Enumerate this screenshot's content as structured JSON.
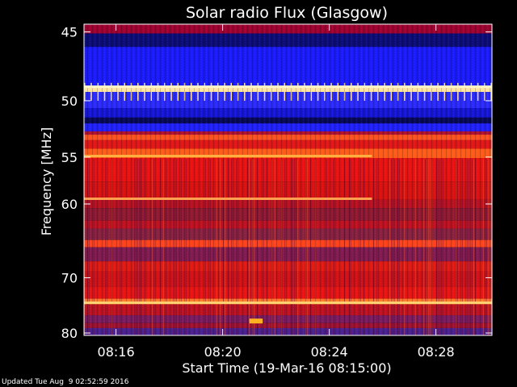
{
  "chart_data": {
    "type": "heatmap",
    "title": "Solar radio Flux (Glasgow)",
    "xlabel": "Start Time (19-Mar-16 08:15:00)",
    "ylabel": "Frequency [MHz]",
    "x_ticks": [
      "08:16",
      "08:20",
      "08:24",
      "08:28"
    ],
    "x_tick_minutes": [
      1,
      5,
      9,
      13
    ],
    "xlim_minutes": [
      -0.2,
      15.1
    ],
    "y_ticks": [
      45,
      50,
      55,
      60,
      70,
      80
    ],
    "ylim_mhz": [
      44.5,
      80.5
    ],
    "y_scale": "reciprocal",
    "colormap": [
      "#08083c",
      "#1818c8",
      "#2030ff",
      "#6a10a0",
      "#a00020",
      "#e01010",
      "#ff3a10",
      "#ff8a30",
      "#ffc060",
      "#ffe890"
    ],
    "bands": [
      {
        "from": 44.5,
        "to": 45.1,
        "color": "#a00030"
      },
      {
        "from": 45.1,
        "to": 46.0,
        "color": "#0c0c78"
      },
      {
        "from": 46.0,
        "to": 48.8,
        "color": "#1a1aff"
      },
      {
        "from": 48.8,
        "to": 49.3,
        "color": "#ffe4a0"
      },
      {
        "from": 49.3,
        "to": 50.6,
        "color": "#2a2aff"
      },
      {
        "from": 50.6,
        "to": 51.4,
        "color": "#1515d8"
      },
      {
        "from": 51.4,
        "to": 51.9,
        "color": "#080858"
      },
      {
        "from": 51.9,
        "to": 52.6,
        "color": "#2020ff"
      },
      {
        "from": 52.6,
        "to": 52.9,
        "color": "#b01030"
      },
      {
        "from": 52.9,
        "to": 53.4,
        "color": "#ff5020"
      },
      {
        "from": 53.4,
        "to": 54.2,
        "color": "#e01515"
      },
      {
        "from": 54.2,
        "to": 55.1,
        "color": "#ff5a18"
      },
      {
        "from": 55.1,
        "to": 57.5,
        "color": "#e81010"
      },
      {
        "from": 57.5,
        "to": 59.5,
        "color": "#d81010"
      },
      {
        "from": 59.5,
        "to": 60.5,
        "color": "#b81020"
      },
      {
        "from": 60.5,
        "to": 62.0,
        "color": "#901830"
      },
      {
        "from": 62.0,
        "to": 63.0,
        "color": "#c01020"
      },
      {
        "from": 63.0,
        "to": 64.5,
        "color": "#882040"
      },
      {
        "from": 64.5,
        "to": 65.5,
        "color": "#ff4018"
      },
      {
        "from": 65.5,
        "to": 67.5,
        "color": "#801a50"
      },
      {
        "from": 67.5,
        "to": 69.0,
        "color": "#e01812"
      },
      {
        "from": 69.0,
        "to": 71.5,
        "color": "#d01015"
      },
      {
        "from": 71.5,
        "to": 73.5,
        "color": "#e81212"
      },
      {
        "from": 73.5,
        "to": 74.5,
        "color": "#ff7a28"
      },
      {
        "from": 74.5,
        "to": 76.5,
        "color": "#c01020"
      },
      {
        "from": 76.5,
        "to": 78.0,
        "color": "#7a1a60"
      },
      {
        "from": 78.0,
        "to": 79.0,
        "color": "#a01030"
      },
      {
        "from": 79.0,
        "to": 80.5,
        "color": "#4a2090"
      }
    ],
    "features": [
      {
        "name": "persistent-emission-line",
        "freq_mhz": 48.9,
        "from_min": -0.2,
        "to_min": 15.1,
        "color": "#fff4c8"
      },
      {
        "name": "emission-line-55mhz",
        "freq_mhz": 54.9,
        "from_min": -0.2,
        "to_min": 10.6,
        "color": "#ffb040"
      },
      {
        "name": "emission-line-59mhz",
        "freq_mhz": 59.4,
        "from_min": -0.2,
        "to_min": 10.6,
        "color": "#ffa050"
      },
      {
        "name": "emission-line-74mhz",
        "freq_mhz": 74.2,
        "from_min": -0.2,
        "to_min": 15.1,
        "color": "#ffd070"
      },
      {
        "name": "burst-spot-78mhz",
        "freq_mhz": 77.6,
        "from_min": 6.0,
        "to_min": 6.5,
        "color": "#ffb020"
      }
    ],
    "grid": false,
    "legend": "none"
  },
  "footer": {
    "updated_text": "Updated Tue Aug  9 02:52:59 2016"
  }
}
